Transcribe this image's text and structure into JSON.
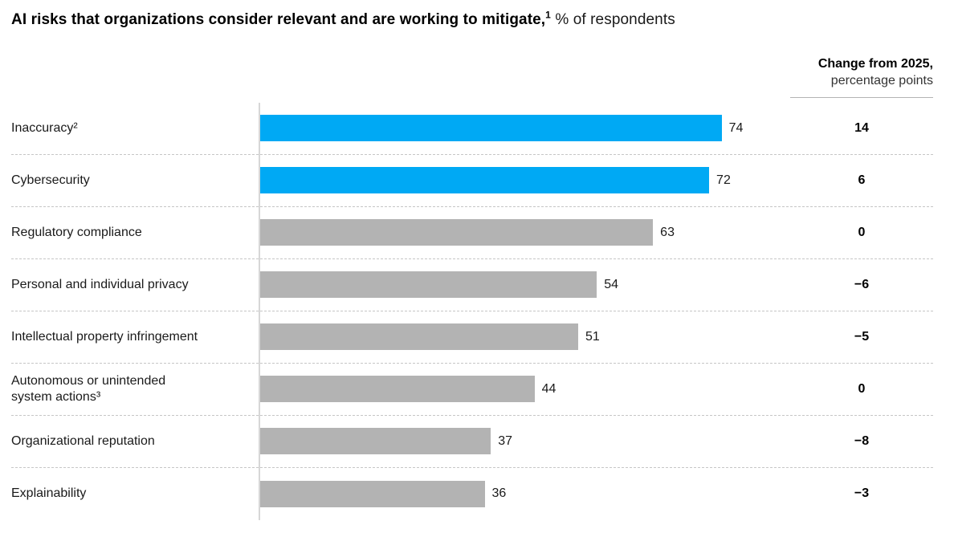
{
  "title": {
    "bold": "AI risks that organizations consider relevant and are working to mitigate,",
    "sup": "1",
    "rest": " % of respondents"
  },
  "change_header": {
    "line1": "Change from 2025,",
    "line2": "percentage points"
  },
  "chart_data": {
    "type": "bar",
    "orientation": "horizontal",
    "title": "AI risks that organizations consider relevant and are working to mitigate, % of respondents",
    "categories": [
      "Inaccuracy²",
      "Cybersecurity",
      "Regulatory compliance",
      "Personal and individual privacy",
      "Intellectual property infringement",
      "Autonomous or unintended system actions³",
      "Organizational reputation",
      "Explainability"
    ],
    "values": [
      74,
      72,
      63,
      54,
      51,
      44,
      37,
      36
    ],
    "changes_from_2025_pp": [
      14,
      6,
      0,
      -6,
      -5,
      0,
      -8,
      -3
    ],
    "change_labels": [
      "14",
      "6",
      "0",
      "−6",
      "−5",
      "0",
      "−8",
      "−3"
    ],
    "highlighted": [
      true,
      true,
      false,
      false,
      false,
      false,
      false,
      false
    ],
    "colors": {
      "highlight": "#00a9f4",
      "default": "#b3b3b3"
    },
    "x_scale_max": 85,
    "legend": "none",
    "grid": "dashed row separators"
  }
}
